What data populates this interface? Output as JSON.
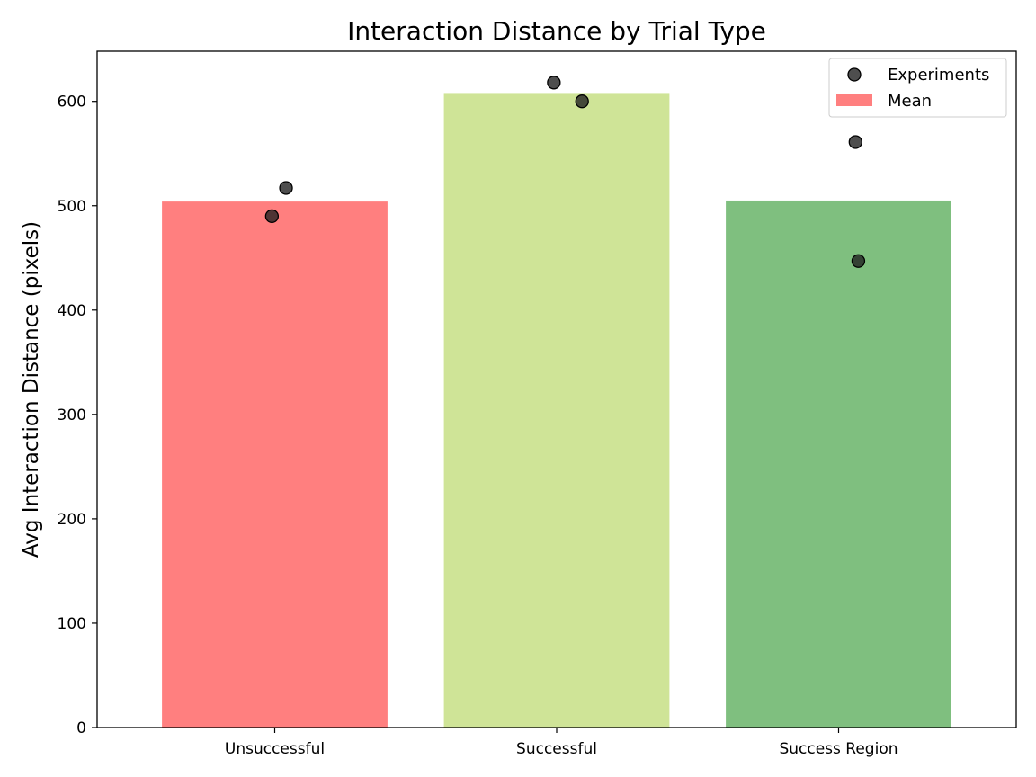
{
  "chart_data": {
    "type": "bar",
    "title": "Interaction Distance by Trial Type",
    "xlabel": "",
    "ylabel": "Avg Interaction Distance (pixels)",
    "categories": [
      "Unsuccessful",
      "Successful",
      "Success Region"
    ],
    "ylim": [
      0,
      648
    ],
    "yticks": [
      0,
      100,
      200,
      300,
      400,
      500,
      600
    ],
    "grid": false,
    "legend_position": "top-right",
    "series": [
      {
        "name": "Mean",
        "kind": "bar",
        "values": [
          504,
          608,
          505
        ],
        "colors": [
          "#ff7f7f",
          "#cfe497",
          "#7fbf7f"
        ]
      },
      {
        "name": "Experiments",
        "kind": "scatter",
        "points": [
          {
            "category": "Unsuccessful",
            "offset": 0.04,
            "y": 517
          },
          {
            "category": "Unsuccessful",
            "offset": -0.01,
            "y": 490
          },
          {
            "category": "Successful",
            "offset": -0.01,
            "y": 618
          },
          {
            "category": "Successful",
            "offset": 0.09,
            "y": 600
          },
          {
            "category": "Success Region",
            "offset": 0.06,
            "y": 561
          },
          {
            "category": "Success Region",
            "offset": 0.07,
            "y": 447
          }
        ],
        "color": "#222222"
      }
    ]
  }
}
